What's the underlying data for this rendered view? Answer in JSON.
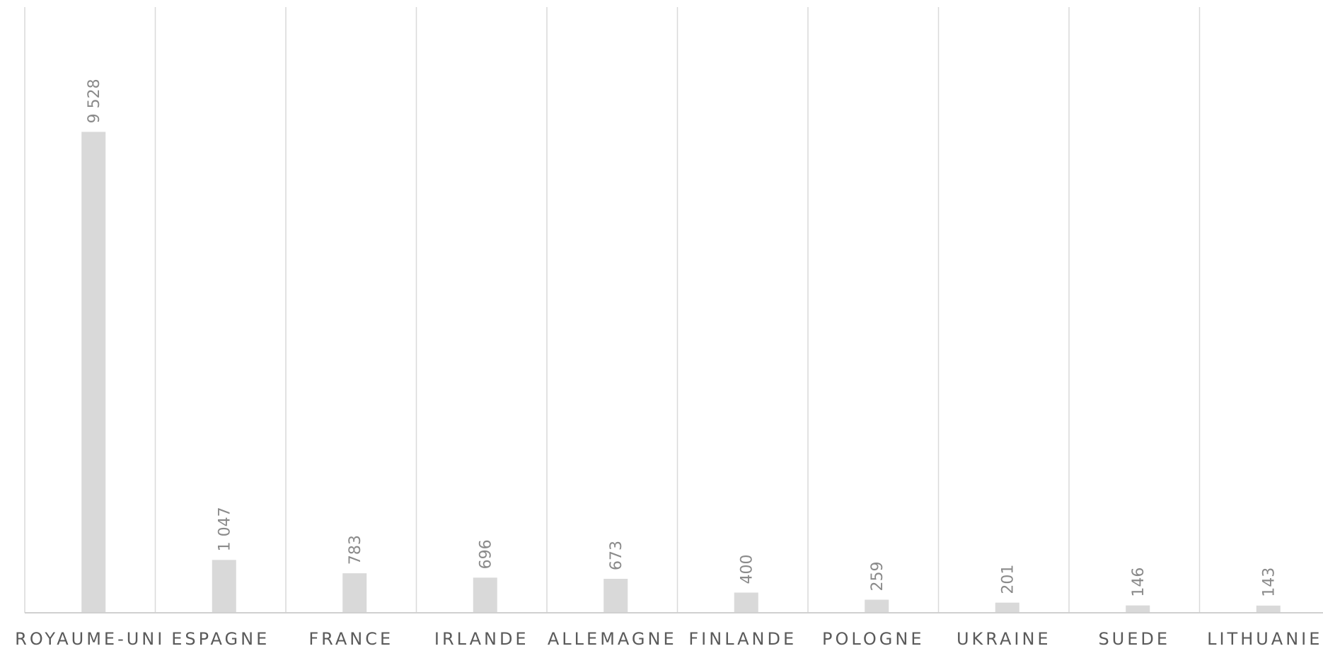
{
  "chart_data": {
    "type": "bar",
    "categories": [
      "ROYAUME-UNI",
      "ESPAGNE",
      "FRANCE",
      "IRLANDE",
      "ALLEMAGNE",
      "FINLANDE",
      "POLOGNE",
      "UKRAINE",
      "SUEDE",
      "LITHUANIE"
    ],
    "values": [
      9528,
      1047,
      783,
      696,
      673,
      400,
      259,
      201,
      146,
      143
    ],
    "value_labels": [
      "9 528",
      "1 047",
      "783",
      "696",
      "673",
      "400",
      "259",
      "201",
      "146",
      "143"
    ],
    "title": "",
    "xlabel": "",
    "ylabel": "",
    "ylim": [
      0,
      12000
    ],
    "grid": "vertical category separators",
    "legend": "none",
    "colors": {
      "bar": "#d9d9d9",
      "grid": "#d9d9d9",
      "axis": "#d0d0d0",
      "value_label": "#8a8a8a",
      "category_label": "#5a5a5a"
    }
  }
}
